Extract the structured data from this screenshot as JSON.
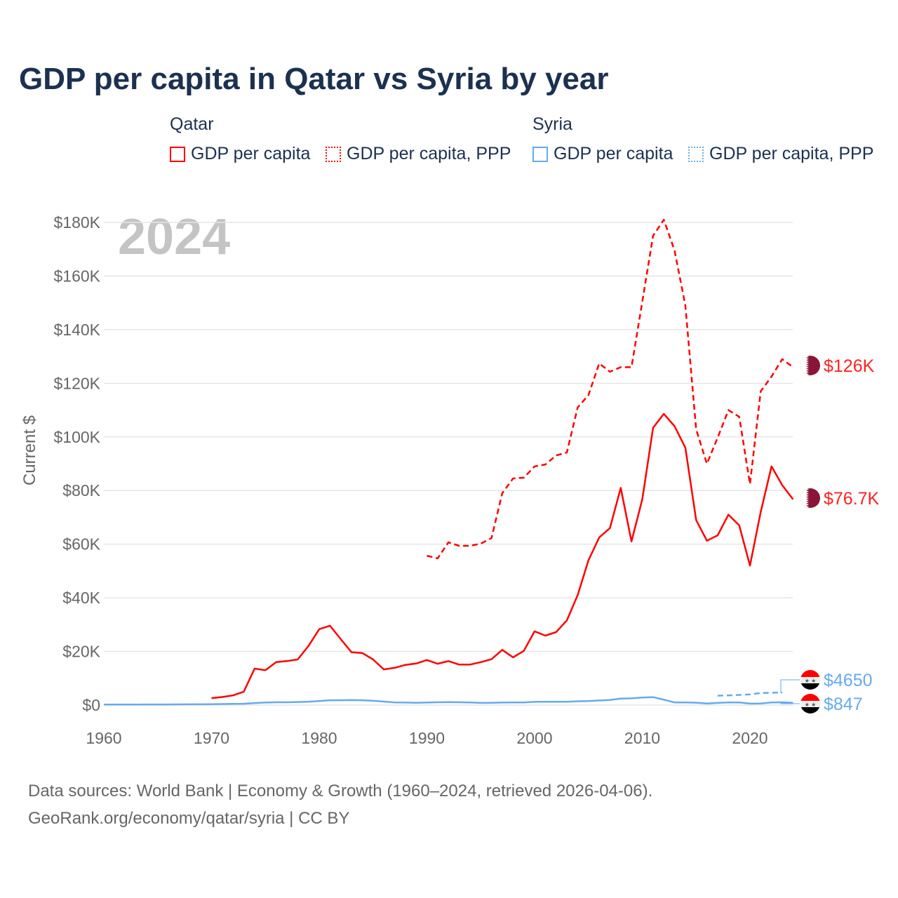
{
  "chart_data": {
    "type": "line",
    "title": "GDP per capita in Qatar vs Syria by year",
    "ylabel": "Current $",
    "xlabel": "",
    "xlim": [
      1960,
      2024
    ],
    "ylim": [
      0,
      180000
    ],
    "xticks": [
      "1960",
      "1970",
      "1980",
      "1990",
      "2000",
      "2010",
      "2020"
    ],
    "yticks": [
      "$0",
      "$20K",
      "$40K",
      "$60K",
      "$80K",
      "$100K",
      "$120K",
      "$140K",
      "$160K",
      "$180K"
    ],
    "year_watermark": "2024",
    "grid": true,
    "legend_placement": "top",
    "legend": {
      "groups": [
        {
          "name": "Qatar",
          "items": [
            "GDP per capita",
            "GDP per capita, PPP"
          ]
        },
        {
          "name": "Syria",
          "items": [
            "GDP per capita",
            "GDP per capita, PPP"
          ]
        }
      ]
    },
    "series": [
      {
        "country": "Qatar",
        "name": "GDP per capita",
        "style": "solid",
        "color": "#ff0000",
        "start_year": 1970,
        "end_label": "$76.7K",
        "values_k": [
          2.6,
          3,
          3.6,
          5,
          13.6,
          13,
          16,
          16.4,
          17,
          22,
          28.3,
          29.6,
          24.6,
          19.7,
          19.4,
          17,
          13.3,
          13.9,
          15,
          15.5,
          16.8,
          15.4,
          16.4,
          15.1,
          15.1,
          16,
          17.1,
          20.6,
          17.8,
          20.2,
          27.5,
          25.9,
          27.2,
          31.6,
          41,
          54,
          62.5,
          66,
          81,
          61,
          76.7,
          103.4,
          108.6,
          104,
          96,
          69,
          61.3,
          63.3,
          71,
          67,
          52,
          72,
          89,
          82,
          76.7
        ]
      },
      {
        "country": "Qatar",
        "name": "GDP per capita, PPP",
        "style": "dashed",
        "color": "#ff0000",
        "start_year": 1990,
        "end_label": "$126K",
        "values_k": [
          55.7,
          54.7,
          60.7,
          59.4,
          59.4,
          60.2,
          62.3,
          79,
          84.5,
          84.8,
          89,
          89.7,
          93.1,
          94.2,
          111,
          115.6,
          127.4,
          124.3,
          126,
          126,
          150.4,
          175,
          181,
          169.5,
          149,
          102.8,
          90,
          99.7,
          110,
          107.5,
          82.4,
          117,
          122.5,
          129,
          126
        ]
      },
      {
        "country": "Syria",
        "name": "GDP per capita",
        "style": "solid",
        "color": "#66aaee",
        "start_year": 1960,
        "end_label": "$847",
        "values_k": [
          0.19,
          0.2,
          0.22,
          0.22,
          0.23,
          0.24,
          0.24,
          0.26,
          0.28,
          0.3,
          0.35,
          0.38,
          0.48,
          0.5,
          0.75,
          0.95,
          1.05,
          1.05,
          1.15,
          1.25,
          1.5,
          1.8,
          1.8,
          1.85,
          1.8,
          1.6,
          1.3,
          1.0,
          0.95,
          0.85,
          0.95,
          1.05,
          1.1,
          1.05,
          1.0,
          0.8,
          0.85,
          0.95,
          1.0,
          1.0,
          1.2,
          1.25,
          1.25,
          1.25,
          1.4,
          1.5,
          1.7,
          1.9,
          2.4,
          2.5,
          2.8,
          2.95,
          2.0,
          1.0,
          1.0,
          0.9,
          0.6,
          0.8,
          1.0,
          1.0,
          0.55,
          0.6,
          1.0,
          1.05,
          0.847
        ]
      },
      {
        "country": "Syria",
        "name": "GDP per capita, PPP",
        "style": "dashed",
        "color": "#66aaee",
        "start_year": 2017,
        "end_label": "$4650",
        "values_k": [
          3.5,
          3.6,
          3.8,
          4.0,
          4.5,
          4.6,
          4.65
        ]
      }
    ]
  },
  "footer": {
    "line1": "Data sources: World Bank | Economy & Growth (1960–2024, retrieved 2026-04-06).",
    "line2": "GeoRank.org/economy/qatar/syria | CC BY"
  }
}
